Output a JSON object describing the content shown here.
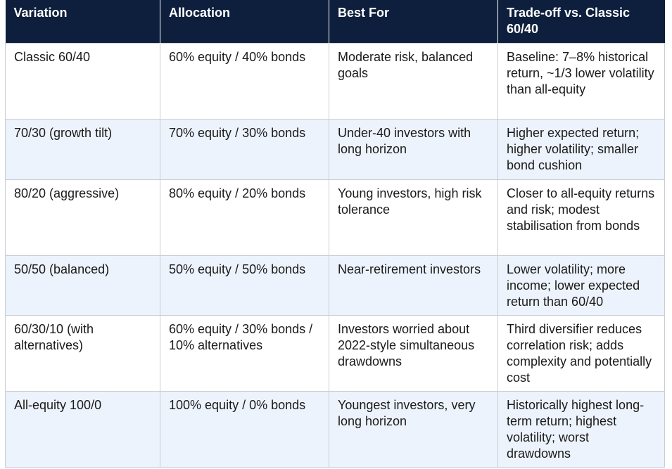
{
  "table": {
    "headers": [
      "Variation",
      "Allocation",
      "Best For",
      "Trade-off vs. Classic 60/40"
    ],
    "rows": [
      {
        "variation": "Classic 60/40",
        "allocation": "60% equity / 40% bonds",
        "best_for": "Moderate risk, balanced goals",
        "tradeoff": "Baseline: 7–8% historical return, ~1/3 lower volatility than all-equity"
      },
      {
        "variation": "70/30 (growth tilt)",
        "allocation": "70% equity / 30% bonds",
        "best_for": "Under-40 investors with long horizon",
        "tradeoff": "Higher expected return; higher volatility; smaller bond cushion"
      },
      {
        "variation": "80/20 (aggressive)",
        "allocation": "80% equity / 20% bonds",
        "best_for": "Young investors, high risk tolerance",
        "tradeoff": "Closer to all-equity returns and risk; modest stabilisation from bonds"
      },
      {
        "variation": "50/50 (balanced)",
        "allocation": "50% equity / 50% bonds",
        "best_for": "Near-retirement investors",
        "tradeoff": "Lower volatility; more income; lower expected return than 60/40"
      },
      {
        "variation": "60/30/10 (with alternatives)",
        "allocation": "60% equity / 30% bonds / 10% alternatives",
        "best_for": "Investors worried about 2022-style simultaneous drawdowns",
        "tradeoff": "Third diversifier reduces correlation risk; adds complexity and potentially cost"
      },
      {
        "variation": "All-equity 100/0",
        "allocation": "100% equity / 0% bonds",
        "best_for": "Youngest investors, very long horizon",
        "tradeoff": "Historically highest long-term return; highest volatility; worst drawdowns"
      }
    ]
  },
  "colors": {
    "header_bg": "#0e1f3d",
    "header_text": "#ffffff",
    "row_alt_bg": "#edf3fc",
    "border": "#c9cdd4"
  }
}
